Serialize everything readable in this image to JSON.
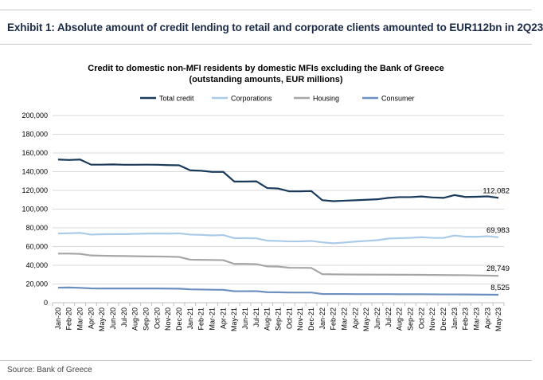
{
  "header": {
    "exhibit_title": "Exhibit 1: Absolute amount of credit lending to retail and corporate clients amounted to EUR112bn in 2Q23"
  },
  "footer": {
    "source": "Source: Bank of Greece"
  },
  "chart_data": {
    "type": "line",
    "title": "Credit to domestic non-MFI residents by domestic MFIs excluding the Bank of Greece",
    "subtitle": "(outstanding amounts, EUR millions)",
    "xlabel": "",
    "ylabel": "",
    "ylim": [
      0,
      200000
    ],
    "yticks": [
      0,
      20000,
      40000,
      60000,
      80000,
      100000,
      120000,
      140000,
      160000,
      180000,
      200000
    ],
    "ytick_labels": [
      "0",
      "20,000",
      "40,000",
      "60,000",
      "80,000",
      "100,000",
      "120,000",
      "140,000",
      "160,000",
      "180,000",
      "200,000"
    ],
    "grid": true,
    "legend_position": "top",
    "x": [
      "Jan-20",
      "Feb-20",
      "Mar-20",
      "Apr-20",
      "May-20",
      "Jun-20",
      "Jul-20",
      "Aug-20",
      "Sep-20",
      "Oct-20",
      "Nov-20",
      "Dec-20",
      "Jan-21",
      "Feb-21",
      "Mar-21",
      "Apr-21",
      "May-21",
      "Jun-21",
      "Jul-21",
      "Aug-21",
      "Sep-21",
      "Oct-21",
      "Nov-21",
      "Dec-21",
      "Jan-22",
      "Feb-22",
      "Mar-22",
      "Apr-22",
      "May-22",
      "Jun-22",
      "Jul-22",
      "Aug-22",
      "Sep-22",
      "Oct-22",
      "Nov-22",
      "Dec-22",
      "Jan-23",
      "Feb-23",
      "Mar-23",
      "Apr-23",
      "May-23"
    ],
    "x_labels_shown": [
      "Jan-20",
      "Feb-20",
      "Mar-20",
      "Apr-20",
      "May-20",
      "Jun-20",
      "Jul-20",
      "Aug-20",
      "Sep-20",
      "Oct-20",
      "Nov-20",
      "Dec-20",
      "Jan-21",
      "Feb-21",
      "Mar-21",
      "Apr-21",
      "May-21",
      "Jun-21",
      "Jul-21",
      "Aug-21",
      "Sep-21",
      "Oct-21",
      "Nov-21",
      "Dec-21",
      "Jan-22",
      "Feb-22",
      "Mar-22",
      "Apr-22",
      "May-22",
      "Jun-22",
      "Jul-22",
      "Aug-22",
      "Sep-22",
      "Oct-22",
      "Nov-22",
      "Dec-22",
      "Jan-23",
      "Feb-23",
      "Mar-23",
      "Apr-23",
      "May-23"
    ],
    "series": [
      {
        "name": "Total credit",
        "color": "#1a3a5c",
        "end_label": "112,082",
        "values": [
          153000,
          152500,
          153000,
          147500,
          147500,
          147800,
          147400,
          147400,
          147500,
          147400,
          147000,
          146800,
          141500,
          141000,
          139800,
          139800,
          129500,
          129500,
          129700,
          122500,
          122000,
          119000,
          119000,
          119300,
          109500,
          108500,
          109000,
          109500,
          110000,
          110500,
          112000,
          112800,
          112800,
          113500,
          112500,
          112000,
          115000,
          113000,
          113200,
          113600,
          112082
        ]
      },
      {
        "name": "Corporations",
        "color": "#a9cbe8",
        "end_label": "69,983",
        "values": [
          74000,
          74200,
          74600,
          72800,
          73200,
          73300,
          73300,
          73600,
          73800,
          74000,
          73800,
          74100,
          72800,
          72500,
          71900,
          72300,
          69000,
          69000,
          68800,
          66300,
          66000,
          65500,
          65600,
          66000,
          64500,
          63500,
          64300,
          65300,
          66000,
          66800,
          68500,
          69000,
          69300,
          70000,
          69300,
          69200,
          71800,
          70500,
          70400,
          71000,
          69983
        ]
      },
      {
        "name": "Housing",
        "color": "#a6a6a6",
        "end_label": "28,749",
        "values": [
          52500,
          52500,
          52200,
          50500,
          50200,
          50000,
          49900,
          49700,
          49500,
          49400,
          49200,
          48900,
          46000,
          45800,
          45700,
          45500,
          41500,
          41500,
          41200,
          38800,
          38600,
          37400,
          37300,
          37200,
          30500,
          30300,
          30200,
          30100,
          30100,
          30000,
          30000,
          29900,
          29900,
          29800,
          29700,
          29600,
          29500,
          29400,
          29200,
          29000,
          28749
        ]
      },
      {
        "name": "Consumer",
        "color": "#6b8fbf",
        "end_label": "8,525",
        "values": [
          16100,
          16300,
          15900,
          15300,
          15200,
          15200,
          15200,
          15200,
          15200,
          15200,
          15100,
          15000,
          14300,
          14100,
          13900,
          13800,
          12300,
          12300,
          12400,
          11300,
          11200,
          10900,
          10900,
          10900,
          9300,
          9300,
          9300,
          9200,
          9200,
          9200,
          9200,
          9100,
          9100,
          9100,
          9000,
          8900,
          8900,
          8800,
          8700,
          8600,
          8525
        ]
      }
    ]
  }
}
